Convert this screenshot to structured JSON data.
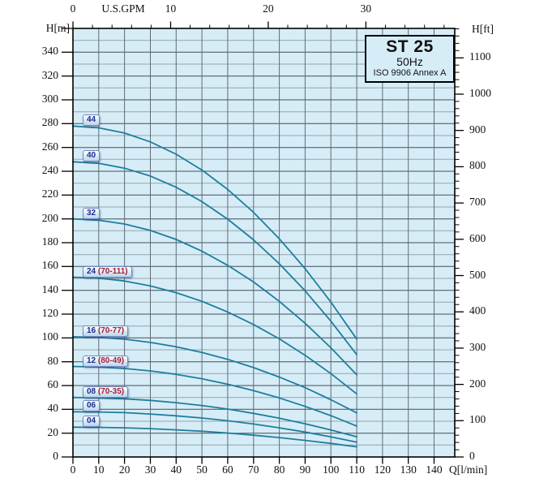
{
  "figure": {
    "title_box": {
      "model": "ST 25",
      "frequency": "50Hz",
      "standard": "ISO 9906 Annex A"
    },
    "axis_titles": {
      "top": "U.S.GPM",
      "left": "H[m]",
      "right": "H[ft]",
      "bottom": "Q[l/min]"
    }
  },
  "chart_data": {
    "type": "line",
    "title": "ST 25 50Hz pump performance curves (ISO 9906 Annex A)",
    "xlabel": "Q[l/min]",
    "ylabel": "H[m]",
    "xlim": [
      0,
      148
    ],
    "ylim": [
      0,
      360
    ],
    "grid": true,
    "x_ticks": [
      0,
      10,
      20,
      30,
      40,
      50,
      60,
      70,
      80,
      90,
      100,
      110,
      120,
      130,
      140
    ],
    "y_ticks": [
      0,
      20,
      40,
      60,
      80,
      100,
      120,
      140,
      160,
      180,
      200,
      220,
      240,
      260,
      280,
      300,
      320,
      340
    ],
    "x_top_axis": {
      "label": "U.S.GPM",
      "ticks": [
        0,
        10,
        20,
        30
      ],
      "minor_step": 2,
      "minor_max": 38
    },
    "y_right_axis": {
      "label": "H[ft]",
      "ticks": [
        0,
        100,
        200,
        300,
        400,
        500,
        600,
        700,
        800,
        900,
        1000,
        1100
      ],
      "minor_step": 20,
      "minor_max": 1180
    },
    "grid_minor_h_step": 10,
    "grid_major_h_step": 20,
    "grid_v_step": 10,
    "x": [
      0,
      10,
      20,
      30,
      40,
      50,
      60,
      70,
      80,
      90,
      100,
      110
    ],
    "series": [
      {
        "name": "44",
        "range": "",
        "values": [
          278,
          276.5,
          272.1,
          264.7,
          254.3,
          241.0,
          224.7,
          205.5,
          183.3,
          158.2,
          130.1,
          99
        ]
      },
      {
        "name": "40",
        "range": "",
        "values": [
          248,
          246.7,
          242.6,
          236.0,
          226.6,
          214.5,
          199.8,
          182.4,
          162.3,
          139.6,
          114.1,
          86
        ]
      },
      {
        "name": "32",
        "range": "",
        "values": [
          200,
          198.9,
          195.7,
          190.3,
          182.7,
          172.9,
          161.0,
          147.0,
          130.7,
          112.3,
          91.7,
          69
        ]
      },
      {
        "name": "24",
        "range": "(70-111)",
        "values": [
          151,
          150.2,
          147.8,
          143.7,
          138.0,
          130.8,
          121.8,
          111.3,
          99.2,
          85.4,
          70.0,
          53
        ]
      },
      {
        "name": "16",
        "range": "(70-77)",
        "values": [
          101,
          100.5,
          98.9,
          96.2,
          92.5,
          87.8,
          82.0,
          75.1,
          67.1,
          58.2,
          48.1,
          37
        ]
      },
      {
        "name": "12",
        "range": "(80-49)",
        "values": [
          76,
          75.6,
          74.3,
          72.3,
          69.4,
          65.7,
          61.1,
          55.8,
          49.6,
          42.5,
          34.7,
          26
        ]
      },
      {
        "name": "08",
        "range": "(70-35)",
        "values": [
          50,
          49.7,
          48.9,
          47.5,
          45.6,
          43.2,
          40.2,
          36.6,
          32.5,
          27.9,
          22.7,
          17
        ]
      },
      {
        "name": "06",
        "range": "",
        "values": [
          38,
          37.8,
          37.2,
          36.1,
          34.6,
          32.7,
          30.4,
          27.7,
          24.5,
          20.9,
          16.9,
          12.5
        ]
      },
      {
        "name": "04",
        "range": "",
        "values": [
          25,
          24.9,
          24.5,
          23.8,
          22.8,
          21.6,
          20.1,
          18.3,
          16.3,
          13.9,
          11.4,
          8.5
        ]
      }
    ],
    "legend_position": "badges-left-inside"
  },
  "colors": {
    "plot_bg": "#d6edf8",
    "curve": "#1f7e9d",
    "grid_minor": "#95a3a9",
    "grid_major": "#454e54",
    "grid_vertical": "#5d6c74",
    "axis": "#000000",
    "badge_border": "#7288c2",
    "badge_text": "#1c2e8c",
    "badge_range_text": "#a51f33"
  }
}
